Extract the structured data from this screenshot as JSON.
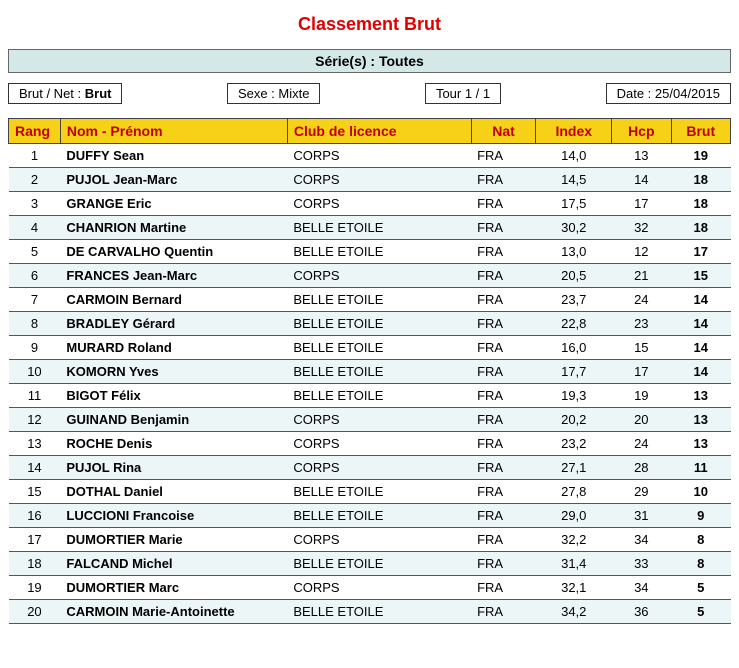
{
  "title": "Classement Brut",
  "series_label": "Série(s) : Toutes",
  "info": {
    "brutnet_label": "Brut / Net :",
    "brutnet_value": "Brut",
    "sexe_label": "Sexe :",
    "sexe_value": "Mixte",
    "tour_text": "Tour 1 / 1",
    "date_label": "Date :",
    "date_value": "25/04/2015"
  },
  "columns": {
    "rang": "Rang",
    "name": "Nom - Prénom",
    "club": "Club de licence",
    "nat": "Nat",
    "index": "Index",
    "hcp": "Hcp",
    "brut": "Brut"
  },
  "rows": [
    {
      "rang": "1",
      "name": "DUFFY Sean",
      "club": "CORPS",
      "nat": "FRA",
      "index": "14,0",
      "hcp": "13",
      "brut": "19"
    },
    {
      "rang": "2",
      "name": "PUJOL Jean-Marc",
      "club": "CORPS",
      "nat": "FRA",
      "index": "14,5",
      "hcp": "14",
      "brut": "18"
    },
    {
      "rang": "3",
      "name": "GRANGE Eric",
      "club": "CORPS",
      "nat": "FRA",
      "index": "17,5",
      "hcp": "17",
      "brut": "18"
    },
    {
      "rang": "4",
      "name": "CHANRION Martine",
      "club": "BELLE ETOILE",
      "nat": "FRA",
      "index": "30,2",
      "hcp": "32",
      "brut": "18"
    },
    {
      "rang": "5",
      "name": "DE CARVALHO Quentin",
      "club": "BELLE ETOILE",
      "nat": "FRA",
      "index": "13,0",
      "hcp": "12",
      "brut": "17"
    },
    {
      "rang": "6",
      "name": "FRANCES Jean-Marc",
      "club": "CORPS",
      "nat": "FRA",
      "index": "20,5",
      "hcp": "21",
      "brut": "15"
    },
    {
      "rang": "7",
      "name": "CARMOIN Bernard",
      "club": "BELLE ETOILE",
      "nat": "FRA",
      "index": "23,7",
      "hcp": "24",
      "brut": "14"
    },
    {
      "rang": "8",
      "name": "BRADLEY Gérard",
      "club": "BELLE ETOILE",
      "nat": "FRA",
      "index": "22,8",
      "hcp": "23",
      "brut": "14"
    },
    {
      "rang": "9",
      "name": "MURARD Roland",
      "club": "BELLE ETOILE",
      "nat": "FRA",
      "index": "16,0",
      "hcp": "15",
      "brut": "14"
    },
    {
      "rang": "10",
      "name": "KOMORN Yves",
      "club": "BELLE ETOILE",
      "nat": "FRA",
      "index": "17,7",
      "hcp": "17",
      "brut": "14"
    },
    {
      "rang": "11",
      "name": "BIGOT Félix",
      "club": "BELLE ETOILE",
      "nat": "FRA",
      "index": "19,3",
      "hcp": "19",
      "brut": "13"
    },
    {
      "rang": "12",
      "name": "GUINAND Benjamin",
      "club": "CORPS",
      "nat": "FRA",
      "index": "20,2",
      "hcp": "20",
      "brut": "13"
    },
    {
      "rang": "13",
      "name": "ROCHE Denis",
      "club": "CORPS",
      "nat": "FRA",
      "index": "23,2",
      "hcp": "24",
      "brut": "13"
    },
    {
      "rang": "14",
      "name": "PUJOL Rina",
      "club": "CORPS",
      "nat": "FRA",
      "index": "27,1",
      "hcp": "28",
      "brut": "11"
    },
    {
      "rang": "15",
      "name": "DOTHAL Daniel",
      "club": "BELLE ETOILE",
      "nat": "FRA",
      "index": "27,8",
      "hcp": "29",
      "brut": "10"
    },
    {
      "rang": "16",
      "name": "LUCCIONI Francoise",
      "club": "BELLE ETOILE",
      "nat": "FRA",
      "index": "29,0",
      "hcp": "31",
      "brut": "9"
    },
    {
      "rang": "17",
      "name": "DUMORTIER Marie",
      "club": "CORPS",
      "nat": "FRA",
      "index": "32,2",
      "hcp": "34",
      "brut": "8"
    },
    {
      "rang": "18",
      "name": "FALCAND Michel",
      "club": "BELLE ETOILE",
      "nat": "FRA",
      "index": "31,4",
      "hcp": "33",
      "brut": "8"
    },
    {
      "rang": "19",
      "name": "DUMORTIER Marc",
      "club": "CORPS",
      "nat": "FRA",
      "index": "32,1",
      "hcp": "34",
      "brut": "5"
    },
    {
      "rang": "20",
      "name": "CARMOIN Marie-Antoinette",
      "club": "BELLE ETOILE",
      "nat": "FRA",
      "index": "34,2",
      "hcp": "36",
      "brut": "5"
    }
  ],
  "style": {
    "title_color": "#e00000",
    "header_bg": "#f7d117",
    "header_fg": "#c00000",
    "row_alt_bg": "#ecf6f7",
    "series_bg": "#d5e8e8",
    "border_color": "#444"
  }
}
